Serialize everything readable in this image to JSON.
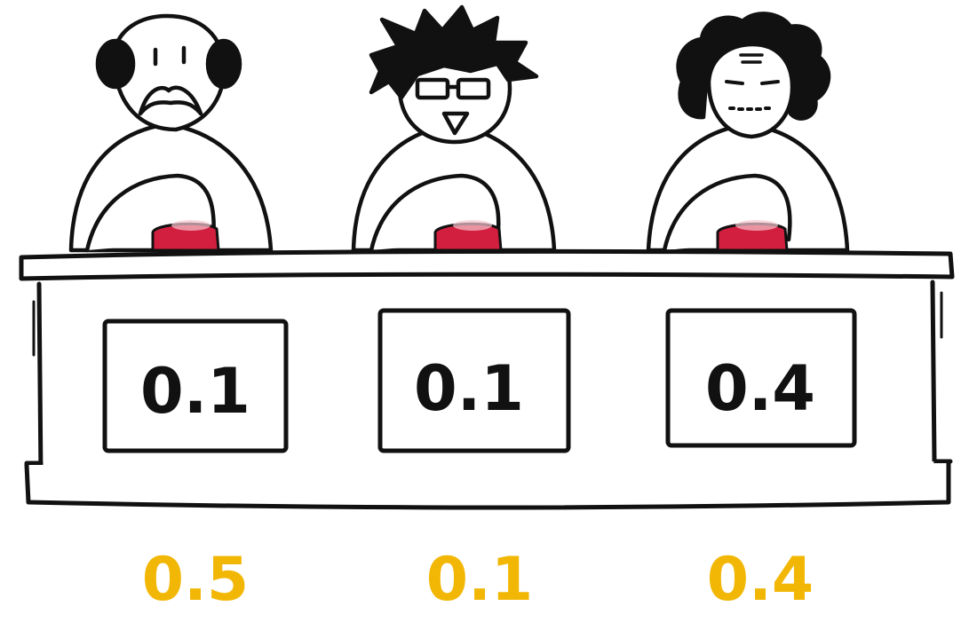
{
  "judges": [
    {
      "id": "bald-mustache",
      "panel_score": "0.1",
      "below_score": "0.5"
    },
    {
      "id": "spiky-glasses",
      "panel_score": "0.1",
      "below_score": "0.1"
    },
    {
      "id": "curly-hair",
      "panel_score": "0.4",
      "below_score": "0.4"
    }
  ],
  "colors": {
    "ink": "#111111",
    "paper": "#ffffff",
    "button": "#d31f3f",
    "highlight_score": "#f2b705"
  }
}
